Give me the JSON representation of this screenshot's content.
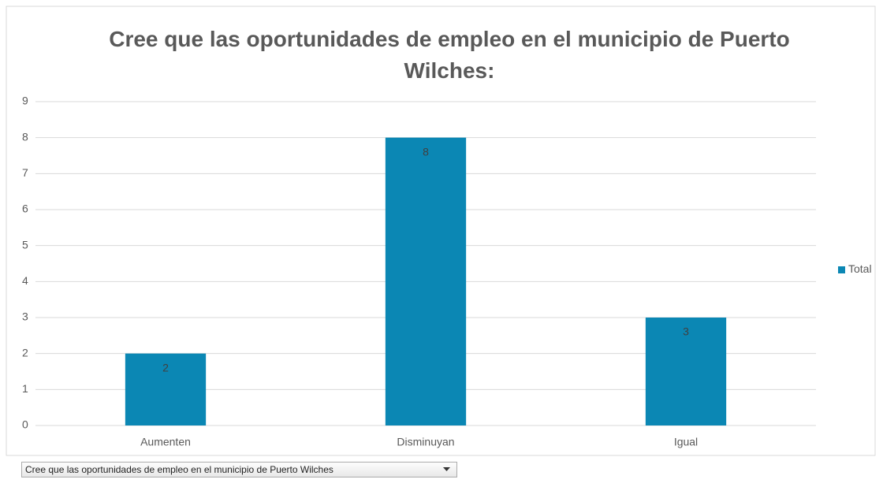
{
  "chart_data": {
    "type": "bar",
    "title": "Cree que las oportunidades de empleo en el municipio de Puerto Wilches:",
    "categories": [
      "Aumenten",
      "Disminuyan",
      "Igual"
    ],
    "series": [
      {
        "name": "Total",
        "color": "#0b87b4",
        "values": [
          2,
          8,
          3
        ]
      }
    ],
    "ylim": [
      0,
      9
    ],
    "yticks": [
      0,
      1,
      2,
      3,
      4,
      5,
      6,
      7,
      8,
      9
    ],
    "grid": true,
    "legend": "right",
    "filter_label": "Cree que las oportunidades de empleo en el municipio de Puerto Wilches"
  }
}
